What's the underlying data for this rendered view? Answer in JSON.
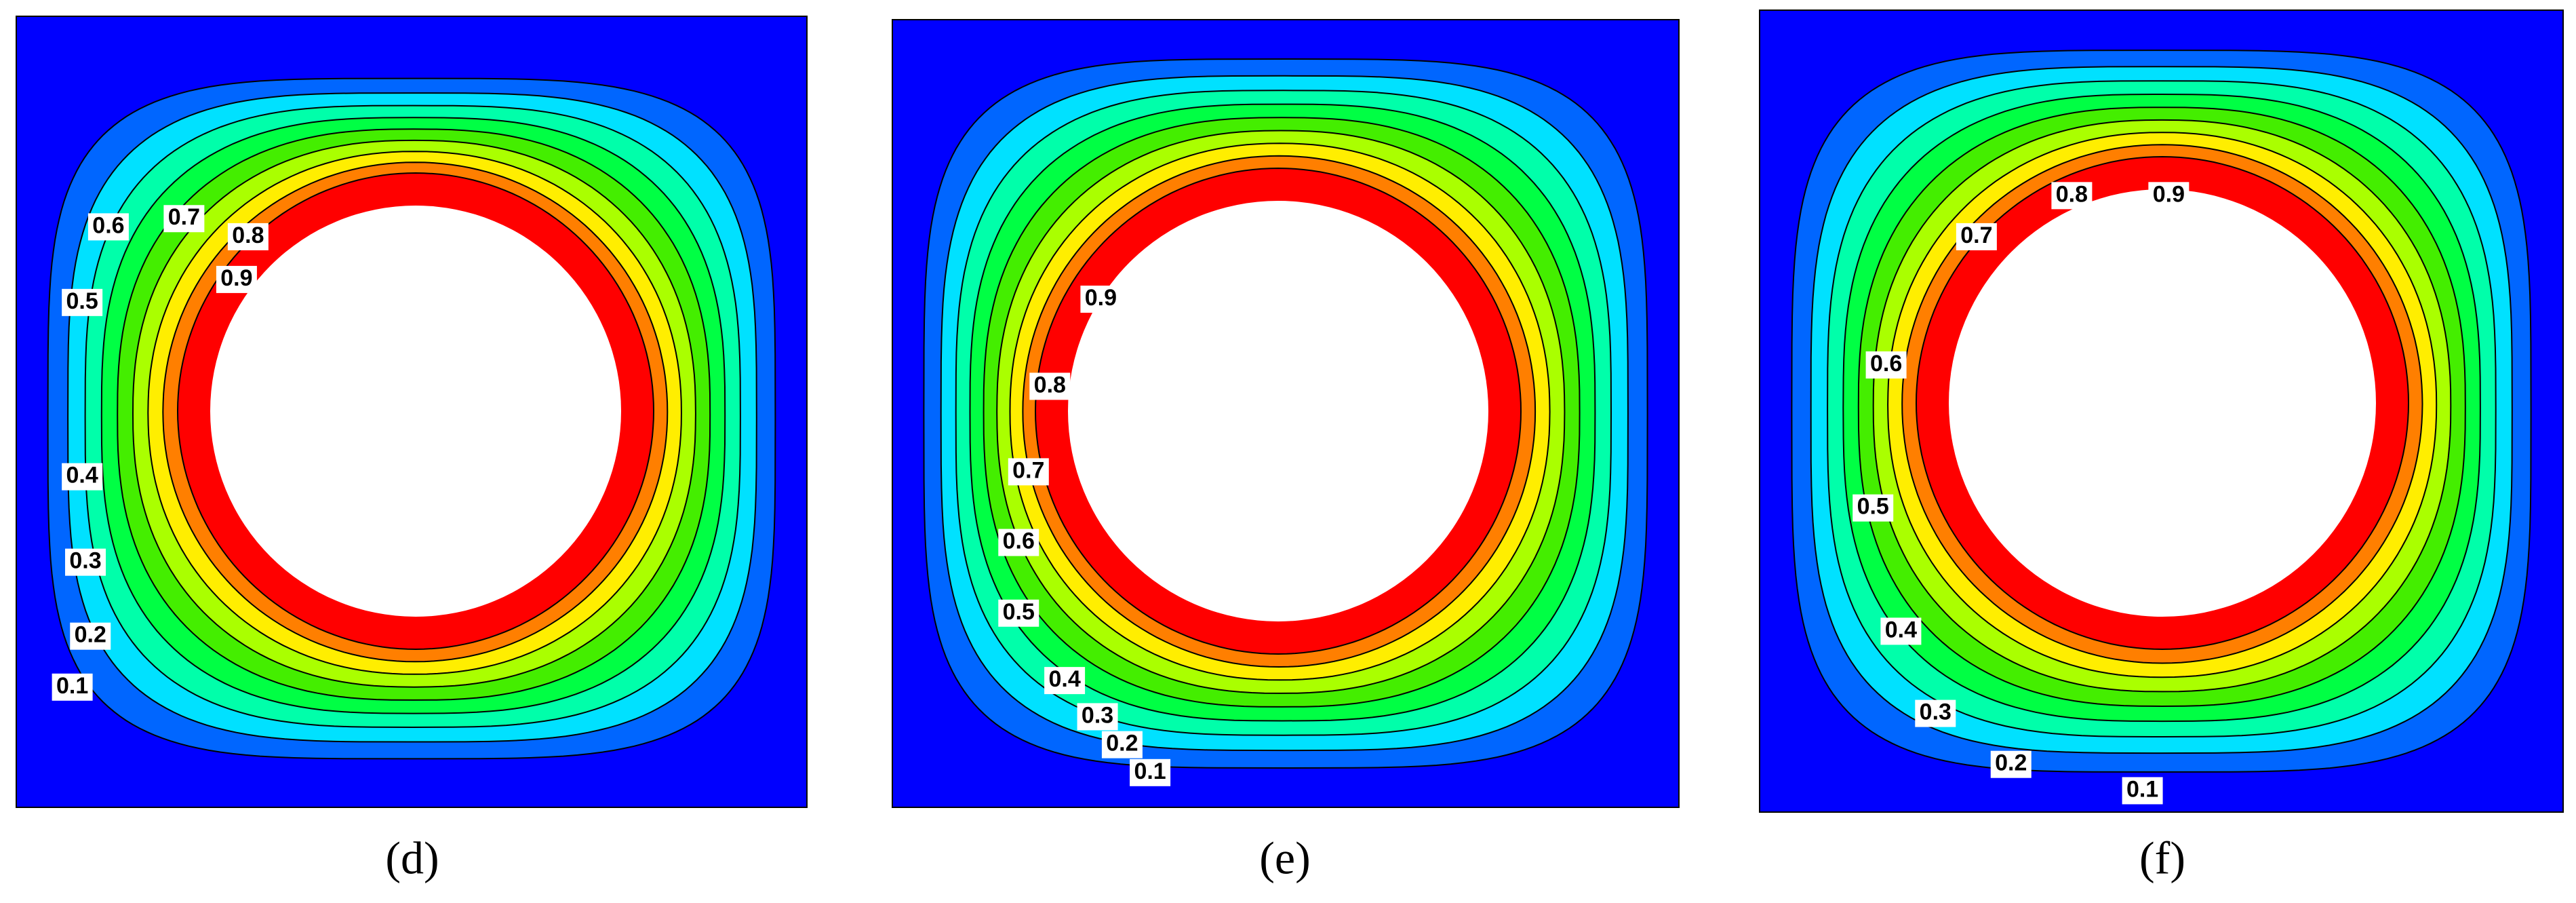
{
  "panels": [
    {
      "caption": "(d)",
      "labels": [
        "0.1",
        "0.2",
        "0.3",
        "0.4",
        "0.5",
        "0.6",
        "0.7",
        "0.8",
        "0.9"
      ]
    },
    {
      "caption": "(e)",
      "labels": [
        "0.1",
        "0.2",
        "0.3",
        "0.4",
        "0.5",
        "0.6",
        "0.7",
        "0.8",
        "0.9"
      ]
    },
    {
      "caption": "(f)",
      "labels": [
        "0.1",
        "0.2",
        "0.3",
        "0.4",
        "0.5",
        "0.6",
        "0.7",
        "0.8",
        "0.9"
      ]
    }
  ]
}
